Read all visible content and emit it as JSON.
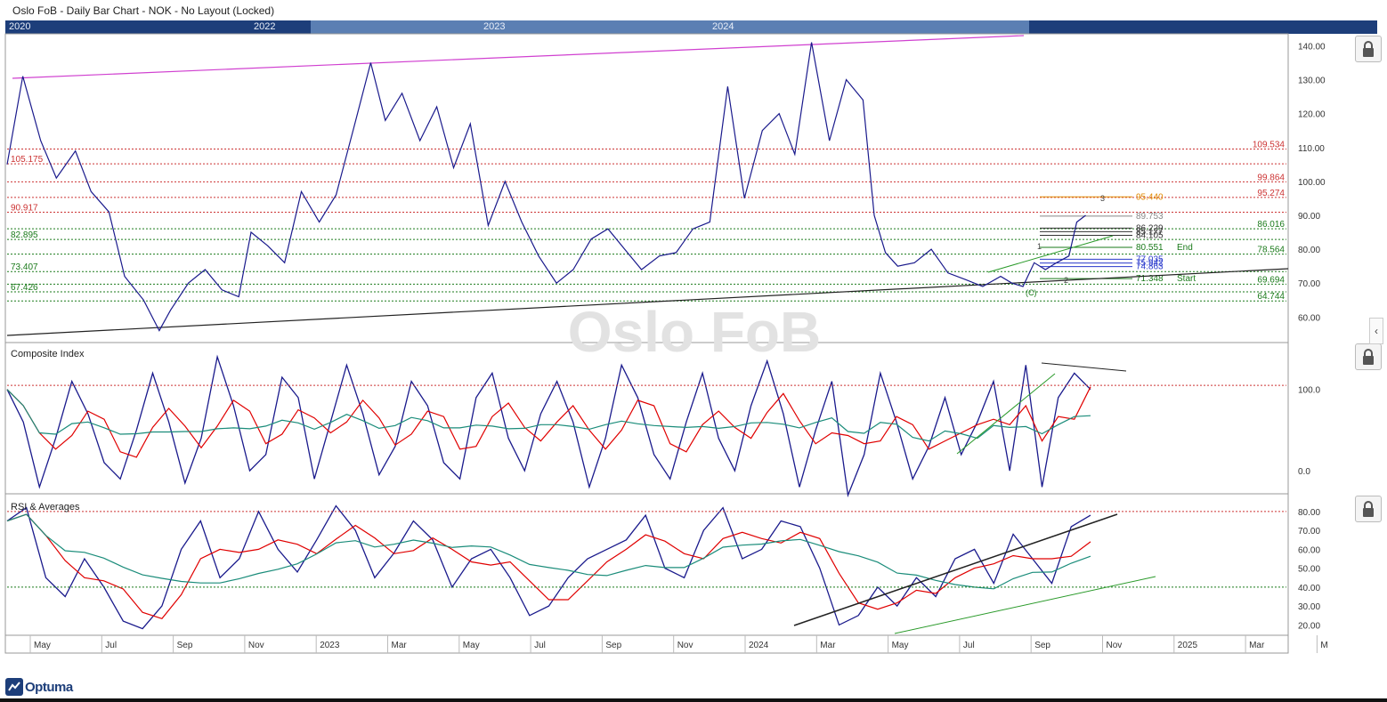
{
  "window": {
    "title": "Oslo FoB - Daily Bar Chart - NOK - No Layout (Locked)"
  },
  "overview": {
    "years": [
      "2020",
      "2022",
      "2023",
      "2024"
    ]
  },
  "watermark": "Oslo FoB",
  "brand": "Optuma",
  "colors": {
    "price_line": "#1a1a8c",
    "fast_ma": "#e00000",
    "slow_ma": "#1a8c7a",
    "red_level": "#cc3333",
    "green_level": "#1a7a1a",
    "orange_level": "#e08a00",
    "trend_magenta": "#d040d0",
    "trend_black": "#222222",
    "trend_green": "#2a9a2a"
  },
  "icons": [
    "lock-icon",
    "chevron-left-icon"
  ],
  "chart_data": [
    {
      "type": "line",
      "panel": "price",
      "title": "",
      "ylim": [
        53,
        143
      ],
      "yticks": [
        "140.00",
        "130.00",
        "120.00",
        "110.00",
        "100.00",
        "90.00",
        "80.00",
        "70.00",
        "60.00"
      ],
      "ytick_values": [
        140,
        130,
        120,
        110,
        100,
        90,
        80,
        70,
        60
      ],
      "series": [
        {
          "x": [
            "2022-04-01",
            "2022-04-15",
            "2022-05-01",
            "2022-05-15",
            "2022-06-01",
            "2022-06-15",
            "2022-07-01",
            "2022-07-15",
            "2022-08-01",
            "2022-08-15",
            "2022-08-25",
            "2022-09-10",
            "2022-09-25",
            "2022-10-10",
            "2022-10-25",
            "2022-11-05",
            "2022-11-20",
            "2022-12-05",
            "2022-12-20",
            "2023-01-05",
            "2023-01-20",
            "2023-02-05",
            "2023-02-20",
            "2023-03-05",
            "2023-03-20",
            "2023-04-05",
            "2023-04-20",
            "2023-05-05",
            "2023-05-20",
            "2023-06-05",
            "2023-06-20",
            "2023-07-05",
            "2023-07-20",
            "2023-08-05",
            "2023-08-20",
            "2023-09-05",
            "2023-09-20",
            "2023-10-05",
            "2023-10-20",
            "2023-11-05",
            "2023-11-20",
            "2023-12-05",
            "2023-12-20",
            "2024-01-05",
            "2024-01-20",
            "2024-02-05",
            "2024-02-20",
            "2024-03-05",
            "2024-03-20",
            "2024-04-05",
            "2024-04-20",
            "2024-05-05",
            "2024-05-15",
            "2024-05-25",
            "2024-06-05",
            "2024-06-20",
            "2024-07-05",
            "2024-07-20",
            "2024-08-05",
            "2024-08-20",
            "2024-09-05",
            "2024-09-15",
            "2024-09-25",
            "2024-10-05",
            "2024-10-15",
            "2024-10-25",
            "2024-11-05",
            "2024-11-12",
            "2024-11-20"
          ],
          "values": [
            105,
            131,
            112,
            101,
            109,
            97,
            91,
            72,
            65,
            56,
            62,
            70,
            74,
            68,
            66,
            85,
            81,
            76,
            97,
            88,
            96,
            116,
            135,
            118,
            126,
            112,
            122,
            104,
            117,
            87,
            100,
            88,
            78,
            70,
            74,
            83,
            86,
            80,
            74,
            78,
            79,
            86,
            88,
            128,
            95,
            115,
            120,
            108,
            141,
            112,
            130,
            124,
            90,
            79,
            75,
            76,
            80,
            73,
            71,
            69,
            72,
            70,
            69,
            76,
            74,
            76,
            78,
            88,
            90
          ]
        }
      ],
      "levels": [
        {
          "value": 109.534,
          "label": "109.534",
          "color": "red"
        },
        {
          "value": 105.175,
          "label": "105.175",
          "color": "red"
        },
        {
          "value": 99.864,
          "label": "99.864",
          "color": "red"
        },
        {
          "value": 95.274,
          "label": "95.274",
          "color": "red"
        },
        {
          "value": 90.917,
          "label": "90.917",
          "color": "red"
        },
        {
          "value": 86.016,
          "label": "86.016",
          "color": "green"
        },
        {
          "value": 82.895,
          "label": "82.895",
          "color": "green"
        },
        {
          "value": 78.564,
          "label": "78.564",
          "color": "green"
        },
        {
          "value": 73.407,
          "label": "73.407",
          "color": "green"
        },
        {
          "value": 69.694,
          "label": "69.694",
          "color": "green"
        },
        {
          "value": 67.426,
          "label": "67.426",
          "color": "green"
        },
        {
          "value": 64.744,
          "label": "64.744",
          "color": "green"
        }
      ],
      "annotations": [
        {
          "value": 95.44,
          "label": "95.440",
          "color": "orange"
        },
        {
          "value": 89.753,
          "label": "89.753",
          "color": "gray"
        },
        {
          "value": 86.229,
          "label": "86.229",
          "color": "dark"
        },
        {
          "value": 85.177,
          "label": "85.177",
          "color": "dark"
        },
        {
          "value": 84.105,
          "label": "84.105",
          "color": "dark"
        },
        {
          "value": 80.551,
          "label": "80.551",
          "color": "green"
        },
        {
          "value": 77.035,
          "label": "77.035",
          "color": "blue"
        },
        {
          "value": 75.942,
          "label": "75.942",
          "color": "blue"
        },
        {
          "value": 74.863,
          "label": "74.863",
          "color": "blue"
        },
        {
          "value": 71.348,
          "label": "71.348",
          "color": "green"
        }
      ],
      "marks": {
        "end": "End",
        "start": "Start",
        "wave": [
          "1",
          "2",
          "3",
          "(C)"
        ]
      }
    },
    {
      "type": "line",
      "panel": "composite",
      "title": "Composite Index",
      "ylim": [
        -25,
        150
      ],
      "yticks": [
        "100.0",
        "0.0"
      ],
      "ytick_values": [
        100,
        0
      ],
      "level": 105,
      "series": [
        {
          "values": [
            100,
            60,
            -20,
            40,
            110,
            70,
            10,
            -10,
            50,
            120,
            60,
            -15,
            40,
            140,
            80,
            0,
            20,
            115,
            90,
            -10,
            60,
            130,
            70,
            -5,
            30,
            110,
            80,
            10,
            -10,
            90,
            120,
            40,
            0,
            70,
            110,
            60,
            -20,
            40,
            130,
            90,
            20,
            -10,
            60,
            120,
            40,
            0,
            80,
            135,
            70,
            -20,
            50,
            110,
            -30,
            20,
            120,
            60,
            -10,
            30,
            90,
            20,
            60,
            110,
            0,
            130,
            -20,
            90,
            120,
            100
          ]
        }
      ]
    },
    {
      "type": "line",
      "panel": "rsi",
      "title": "RSI & Averages",
      "ylim": [
        15,
        87
      ],
      "yticks": [
        "80.00",
        "70.00",
        "60.00",
        "50.00",
        "40.00",
        "30.00",
        "20.00"
      ],
      "ytick_values": [
        80,
        70,
        60,
        50,
        40,
        30,
        20
      ],
      "levels": [
        80,
        40
      ],
      "series": [
        {
          "values": [
            75,
            82,
            45,
            35,
            55,
            40,
            22,
            18,
            30,
            60,
            75,
            45,
            55,
            80,
            60,
            48,
            65,
            83,
            70,
            45,
            58,
            75,
            65,
            40,
            55,
            60,
            45,
            25,
            30,
            45,
            55,
            60,
            65,
            78,
            50,
            45,
            70,
            82,
            55,
            60,
            75,
            72,
            50,
            20,
            25,
            40,
            30,
            45,
            35,
            55,
            60,
            42,
            68,
            55,
            42,
            72,
            78
          ]
        }
      ]
    }
  ],
  "xaxis": {
    "labels": [
      "May",
      "Jul",
      "Sep",
      "Nov",
      "2023",
      "Mar",
      "May",
      "Jul",
      "Sep",
      "Nov",
      "2024",
      "Mar",
      "May",
      "Jul",
      "Sep",
      "Nov",
      "2025",
      "Mar",
      "M"
    ]
  }
}
